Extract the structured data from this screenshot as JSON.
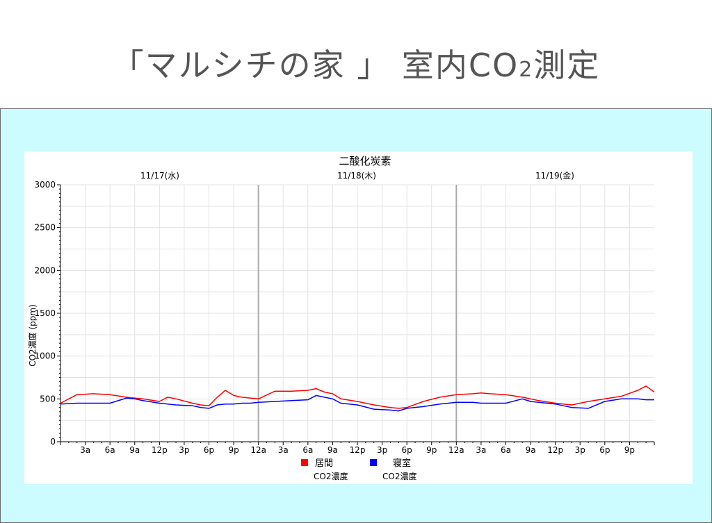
{
  "slide": {
    "title_main": "「マルシチの家 」 室内CO",
    "title_sub": "2",
    "title_tail": "測定"
  },
  "chart_data": {
    "type": "line",
    "title": "二酸化炭素",
    "ylabel": "CO2濃度 (ppm)",
    "xlabel": "",
    "ylim": [
      0,
      3000
    ],
    "y_ticks": [
      0,
      500,
      1000,
      1500,
      2000,
      2500,
      3000
    ],
    "hours_total": 72,
    "days": [
      "11/17(水)",
      "11/18(木)",
      "11/19(金)"
    ],
    "x_tick_labels": [
      "3a",
      "6a",
      "9a",
      "12p",
      "3p",
      "6p",
      "9p",
      "12a",
      "3a",
      "6a",
      "9a",
      "12p",
      "3p",
      "6p",
      "9p",
      "12a",
      "3a",
      "6a",
      "9a",
      "12p",
      "3p",
      "6p",
      "9p"
    ],
    "grid": true,
    "legend_position": "bottom",
    "x": [
      0,
      2,
      4,
      6,
      8,
      9,
      10,
      12,
      13,
      14,
      16,
      17,
      18,
      19,
      20,
      21,
      22,
      23,
      24,
      26,
      28,
      30,
      31,
      32,
      33,
      34,
      36,
      38,
      40,
      41,
      42,
      44,
      46,
      48,
      50,
      51,
      52,
      54,
      56,
      57,
      58,
      60,
      62,
      64,
      66,
      68,
      70,
      71,
      72
    ],
    "series": [
      {
        "name": "居間",
        "subname": "CO2濃度",
        "color": "#ff0000",
        "values": [
          450,
          550,
          560,
          550,
          520,
          510,
          500,
          470,
          520,
          500,
          450,
          430,
          420,
          520,
          600,
          540,
          520,
          510,
          500,
          590,
          590,
          600,
          620,
          580,
          560,
          500,
          470,
          430,
          400,
          390,
          400,
          470,
          520,
          550,
          560,
          570,
          560,
          550,
          520,
          500,
          480,
          450,
          430,
          470,
          500,
          530,
          600,
          650,
          580
        ]
      },
      {
        "name": "寝室",
        "subname": "CO2濃度",
        "color": "#0000ff",
        "values": [
          440,
          450,
          450,
          450,
          510,
          500,
          480,
          450,
          440,
          430,
          420,
          400,
          390,
          430,
          440,
          440,
          450,
          450,
          460,
          470,
          480,
          490,
          540,
          520,
          500,
          450,
          430,
          380,
          370,
          360,
          390,
          410,
          440,
          460,
          460,
          450,
          450,
          450,
          500,
          470,
          460,
          440,
          400,
          390,
          470,
          500,
          500,
          490,
          490
        ]
      }
    ]
  }
}
